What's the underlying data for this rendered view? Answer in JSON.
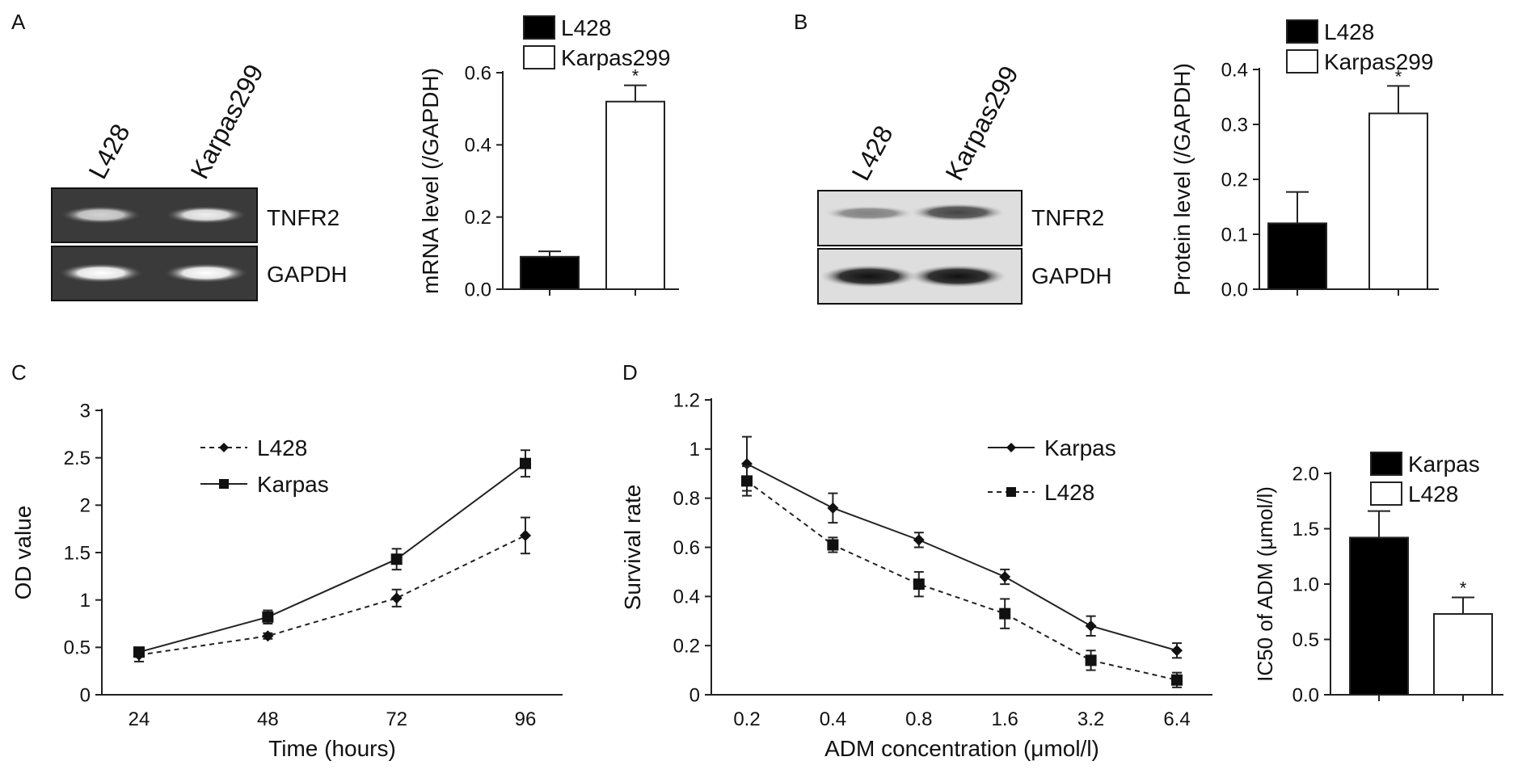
{
  "panels": {
    "A": {
      "letter": "A",
      "gel": {
        "lanes": [
          "L428",
          "Karpas299"
        ],
        "rows": [
          {
            "label": "TNFR2",
            "intensity": [
              0.78,
              0.92
            ]
          },
          {
            "label": "GAPDH",
            "intensity": [
              1.0,
              1.0
            ]
          }
        ]
      }
    },
    "B": {
      "letter": "B",
      "blot": {
        "lanes": [
          "L428",
          "Karpas299"
        ],
        "rows": [
          {
            "label": "TNFR2",
            "intensity": [
              0.45,
              0.75
            ]
          },
          {
            "label": "GAPDH",
            "intensity": [
              1.0,
              1.0
            ]
          }
        ]
      }
    },
    "C": {
      "letter": "C"
    },
    "D": {
      "letter": "D"
    }
  },
  "chart_data": [
    {
      "id": "A-bar",
      "type": "bar",
      "categories": [
        "L428",
        "Karpas299"
      ],
      "values": [
        0.09,
        0.52
      ],
      "errors": [
        0.015,
        0.045
      ],
      "colors": [
        "#000000",
        "#ffffff"
      ],
      "significance": [
        "",
        "*"
      ],
      "ylabel": "mRNA level (/GAPDH)",
      "ylim": [
        0,
        0.6
      ],
      "yticks": [
        "0.0",
        "0.2",
        "0.4",
        "0.6"
      ],
      "legend": [
        "L428",
        "Karpas299"
      ],
      "legend_position": "top"
    },
    {
      "id": "B-bar",
      "type": "bar",
      "categories": [
        "L428",
        "Karpas299"
      ],
      "values": [
        0.12,
        0.32
      ],
      "errors": [
        0.057,
        0.05
      ],
      "colors": [
        "#000000",
        "#ffffff"
      ],
      "significance": [
        "",
        "*"
      ],
      "ylabel": "Protein level (/GAPDH)",
      "ylim": [
        0,
        0.4
      ],
      "yticks": [
        "0.0",
        "0.1",
        "0.2",
        "0.3",
        "0.4"
      ],
      "legend": [
        "L428",
        "Karpas299"
      ],
      "legend_position": "top"
    },
    {
      "id": "C-line",
      "type": "line",
      "x": [
        "24",
        "48",
        "72",
        "96"
      ],
      "xlabel": "Time (hours)",
      "ylabel": "OD value",
      "ylim": [
        0,
        3
      ],
      "yticks": [
        "0",
        "0.5",
        "1",
        "1.5",
        "2",
        "2.5",
        "3"
      ],
      "legend_position": "upper-left",
      "series": [
        {
          "name": "L428",
          "values": [
            0.42,
            0.62,
            1.02,
            1.68
          ],
          "errors": [
            0.07,
            0.03,
            0.09,
            0.19
          ],
          "marker": "diamond",
          "dash": true
        },
        {
          "name": "Karpas",
          "values": [
            0.45,
            0.82,
            1.43,
            2.44
          ],
          "errors": [
            0.05,
            0.07,
            0.11,
            0.14
          ],
          "marker": "square",
          "dash": false
        }
      ]
    },
    {
      "id": "D-line",
      "type": "line",
      "x": [
        "0.2",
        "0.4",
        "0.8",
        "1.6",
        "3.2",
        "6.4"
      ],
      "xlabel": "ADM concentration (μmol/l)",
      "ylabel": "Survival rate",
      "ylim": [
        0,
        1.2
      ],
      "yticks": [
        "0",
        "0.2",
        "0.4",
        "0.6",
        "0.8",
        "1",
        "1.2"
      ],
      "legend_position": "upper-right",
      "series": [
        {
          "name": "Karpas",
          "values": [
            0.94,
            0.76,
            0.63,
            0.48,
            0.28,
            0.18
          ],
          "errors": [
            0.11,
            0.06,
            0.03,
            0.03,
            0.04,
            0.03
          ],
          "marker": "diamond",
          "dash": false
        },
        {
          "name": "L428",
          "values": [
            0.87,
            0.61,
            0.45,
            0.33,
            0.14,
            0.06
          ],
          "errors": [
            0.06,
            0.03,
            0.05,
            0.06,
            0.04,
            0.03
          ],
          "marker": "square",
          "dash": true
        }
      ]
    },
    {
      "id": "D-bar",
      "type": "bar",
      "categories": [
        "Karpas",
        "L428"
      ],
      "values": [
        1.42,
        0.73
      ],
      "errors": [
        0.24,
        0.15
      ],
      "colors": [
        "#000000",
        "#ffffff"
      ],
      "significance": [
        "",
        "*"
      ],
      "ylabel": "IC50 of ADM (μmol/l)",
      "ylim": [
        0,
        2.0
      ],
      "yticks": [
        "0.0",
        "0.5",
        "1.0",
        "1.5",
        "2.0"
      ],
      "legend": [
        "Karpas",
        "L428"
      ],
      "legend_position": "top"
    }
  ]
}
